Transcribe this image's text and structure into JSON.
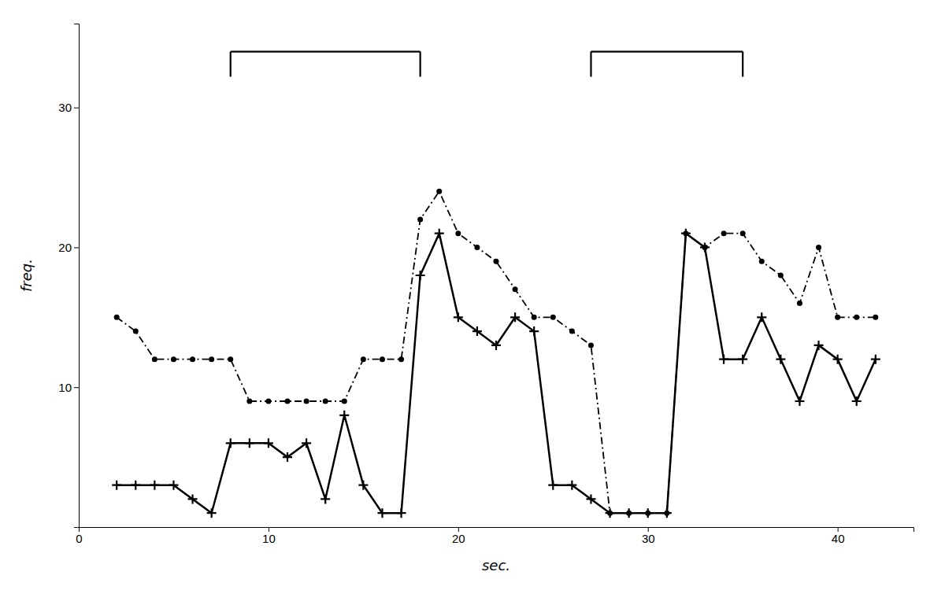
{
  "chart_data": {
    "type": "line",
    "title": "",
    "xlabel": "sec.",
    "ylabel": "freq.",
    "x": [
      2,
      3,
      4,
      5,
      6,
      7,
      8,
      9,
      10,
      11,
      12,
      13,
      14,
      15,
      16,
      17,
      18,
      19,
      20,
      21,
      22,
      23,
      24,
      25,
      26,
      27,
      28,
      29,
      30,
      31,
      32,
      33,
      34,
      35,
      36,
      37,
      38,
      39,
      40,
      41,
      42
    ],
    "series": [
      {
        "color": "#000000",
        "marker": "point",
        "line_style": "dash-dot",
        "values": [
          15,
          14,
          12,
          12,
          12,
          12,
          12,
          9,
          9,
          9,
          9,
          9,
          9,
          12,
          12,
          12,
          22,
          24,
          21,
          20,
          19,
          17,
          15,
          15,
          14,
          13,
          1,
          1,
          1,
          1,
          21,
          20,
          21,
          21,
          19,
          18,
          16,
          20,
          15,
          15,
          15
        ]
      },
      {
        "color": "#000000",
        "marker": "plus",
        "line_style": "solid",
        "values": [
          3,
          3,
          3,
          3,
          2,
          1,
          6,
          6,
          6,
          5,
          6,
          2,
          8,
          3,
          1,
          1,
          18,
          21,
          15,
          14,
          13,
          15,
          14,
          3,
          3,
          2,
          1,
          1,
          1,
          1,
          21,
          20,
          12,
          12,
          15,
          12,
          9,
          13,
          12,
          9,
          12
        ]
      }
    ],
    "brackets": [
      {
        "x1": 8,
        "x2": 18,
        "y": 34,
        "leg": 1.8
      },
      {
        "x1": 27,
        "x2": 35,
        "y": 34,
        "leg": 1.8
      }
    ],
    "xlim": [
      0,
      44
    ],
    "ylim": [
      0,
      36
    ],
    "xticks": [
      0,
      10,
      20,
      30,
      40
    ],
    "yticks": [
      10,
      20,
      30
    ],
    "grid": false
  }
}
